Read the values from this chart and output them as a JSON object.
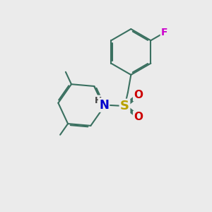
{
  "bg_color": "#ebebeb",
  "bond_color": "#3a7060",
  "bond_width": 1.5,
  "dbo": 0.06,
  "atom_colors": {
    "S": "#b8a000",
    "O": "#cc0000",
    "N": "#0000cc",
    "F": "#cc00cc",
    "H": "#444444",
    "C": "#3a7060"
  },
  "figsize": [
    3.0,
    3.0
  ],
  "dpi": 100
}
